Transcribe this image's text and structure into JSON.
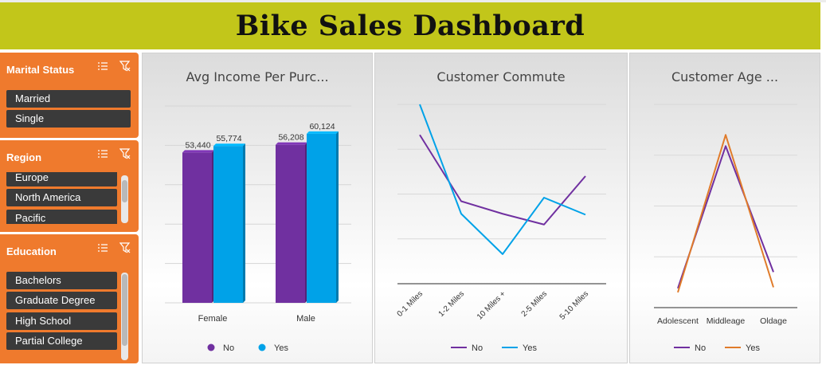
{
  "dashboard": {
    "title": "Bike Sales Dashboard"
  },
  "slicers": {
    "marital": {
      "header": "Marital Status",
      "items": [
        "Married",
        "Single"
      ]
    },
    "region": {
      "header": "Region",
      "items": [
        "Europe",
        "North America",
        "Pacific"
      ]
    },
    "education": {
      "header": "Education",
      "items": [
        "Bachelors",
        "Graduate Degree",
        "High School",
        "Partial College"
      ]
    }
  },
  "icons": {
    "multiselect": "multi-select-icon",
    "clear": "clear-filter-icon"
  },
  "colors": {
    "banner": "#c2c61a",
    "slicer": "#ef7a2d",
    "no": "#7030a0",
    "yes": "#00a2e8",
    "ageYes": "#e07b2a"
  },
  "chart_data": [
    {
      "type": "bar",
      "title": "Avg Income Per Purc...",
      "categories": [
        "Female",
        "Male"
      ],
      "series": [
        {
          "name": "No",
          "values": [
            53440,
            56208
          ],
          "labels": [
            "53,440",
            "56,208"
          ]
        },
        {
          "name": "Yes",
          "values": [
            55774,
            60124
          ],
          "labels": [
            "55,774",
            "60,124"
          ]
        }
      ],
      "ylim": [
        0,
        70000
      ],
      "grid": true,
      "legend": "bottom"
    },
    {
      "type": "line",
      "title": "Customer Commute",
      "categories": [
        "0-1 Miles",
        "1-2 Miles",
        "10 Miles +",
        "2-5 Miles",
        "5-10 Miles"
      ],
      "series": [
        {
          "name": "No",
          "values": [
            166,
            92,
            78,
            66,
            120
          ]
        },
        {
          "name": "Yes",
          "values": [
            200,
            78,
            33,
            96,
            77
          ]
        }
      ],
      "ylim": [
        0,
        200
      ],
      "grid": true,
      "legend": "bottom"
    },
    {
      "type": "line",
      "title": "Customer Age ...",
      "categories": [
        "Adolescent",
        "Middleage",
        "Oldage"
      ],
      "series": [
        {
          "name": "No",
          "values": [
            38,
            318,
            70
          ]
        },
        {
          "name": "Yes",
          "values": [
            30,
            340,
            40
          ]
        }
      ],
      "ylim": [
        0,
        400
      ],
      "grid": true,
      "legend": "bottom"
    }
  ]
}
